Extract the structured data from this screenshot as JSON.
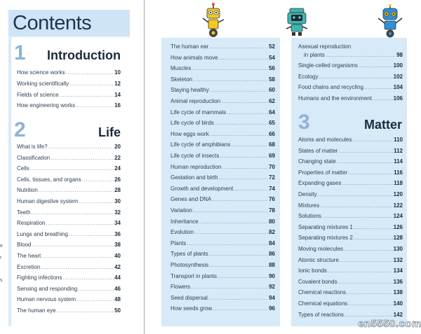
{
  "title": "Contents",
  "sections": [
    {
      "number": "1",
      "name": "Introduction"
    },
    {
      "number": "2",
      "name": "Life"
    },
    {
      "number": "3",
      "name": "Matter"
    }
  ],
  "intro_items": [
    {
      "label": "How science works",
      "page": "10"
    },
    {
      "label": "Working scientifically",
      "page": "12"
    },
    {
      "label": "Fields of science",
      "page": "14"
    },
    {
      "label": "How engineering works",
      "page": "16"
    }
  ],
  "life_items": [
    {
      "label": "What is life?",
      "page": "20"
    },
    {
      "label": "Classification",
      "page": "22"
    },
    {
      "label": "Cells",
      "page": "24"
    },
    {
      "label": "Cells, tissues, and organs",
      "page": "26"
    },
    {
      "label": "Nutrition",
      "page": "28"
    },
    {
      "label": "Human digestive system",
      "page": "30"
    },
    {
      "label": "Teeth",
      "page": "32"
    },
    {
      "label": "Respiration",
      "page": "34"
    },
    {
      "label": "Lungs and breathing",
      "page": "36"
    },
    {
      "label": "Blood",
      "page": "38"
    },
    {
      "label": "The heart",
      "page": "40"
    },
    {
      "label": "Excretion",
      "page": "42"
    },
    {
      "label": "Fighting infections",
      "page": "44"
    },
    {
      "label": "Sensing and responding",
      "page": "46"
    },
    {
      "label": "Human nervous system",
      "page": "48"
    },
    {
      "label": "The human eye",
      "page": "50"
    }
  ],
  "middle_items": [
    {
      "label": "The human ear",
      "page": "52"
    },
    {
      "label": "How animals move",
      "page": "54"
    },
    {
      "label": "Muscles",
      "page": "56"
    },
    {
      "label": "Skeleton",
      "page": "58"
    },
    {
      "label": "Staying healthy",
      "page": "60"
    },
    {
      "label": "Animal reproduction",
      "page": "62"
    },
    {
      "label": "Life cycle of mammals",
      "page": "64"
    },
    {
      "label": "Life cycle of birds",
      "page": "65"
    },
    {
      "label": "How eggs work",
      "page": "66"
    },
    {
      "label": "Life cycle of amphibians",
      "page": "68"
    },
    {
      "label": "Life cycle of insects",
      "page": "69"
    },
    {
      "label": "Human reproduction",
      "page": "70"
    },
    {
      "label": "Gestation and birth",
      "page": "72"
    },
    {
      "label": "Growth and development",
      "page": "74"
    },
    {
      "label": "Genes and DNA",
      "page": "76"
    },
    {
      "label": "Variation",
      "page": "78"
    },
    {
      "label": "Inheritance",
      "page": "80"
    },
    {
      "label": "Evolution",
      "page": "82"
    },
    {
      "label": "Plants",
      "page": "84"
    },
    {
      "label": "Types of plants",
      "page": "86"
    },
    {
      "label": "Photosynthesis",
      "page": "88"
    },
    {
      "label": "Transport in plants",
      "page": "90"
    },
    {
      "label": "Flowers",
      "page": "92"
    },
    {
      "label": "Seed dispersal",
      "page": "94"
    },
    {
      "label": "How seeds grow",
      "page": "96"
    }
  ],
  "right_top_items": [
    {
      "label": "Asexual reproduction",
      "label2": "in plants",
      "page": "98"
    },
    {
      "label": "Single-celled organisms",
      "page": "100"
    },
    {
      "label": "Ecology",
      "page": "102"
    },
    {
      "label": "Food chains and recycling",
      "page": "104"
    },
    {
      "label": "Humans and the environment",
      "page": "106"
    }
  ],
  "matter_items": [
    {
      "label": "Atoms and molecules",
      "page": "110"
    },
    {
      "label": "States of matter",
      "page": "112"
    },
    {
      "label": "Changing state",
      "page": "114"
    },
    {
      "label": "Properties of matter",
      "page": "116"
    },
    {
      "label": "Expanding gases",
      "page": "118"
    },
    {
      "label": "Density",
      "page": "120"
    },
    {
      "label": "Mixtures",
      "page": "122"
    },
    {
      "label": "Solutions",
      "page": "124"
    },
    {
      "label": "Separating mixtures 1",
      "page": "126"
    },
    {
      "label": "Separating mixtures 2",
      "page": "128"
    },
    {
      "label": "Moving molecules",
      "page": "130"
    },
    {
      "label": "Atomic structure",
      "page": "132"
    },
    {
      "label": "Ionic bonds",
      "page": "134"
    },
    {
      "label": "Covalent bonds",
      "page": "136"
    },
    {
      "label": "Chemical reactions",
      "page": "138"
    },
    {
      "label": "Chemical equations",
      "page": "140"
    },
    {
      "label": "Types of reactions",
      "page": "142"
    }
  ],
  "left_edge_marks": [
    "e",
    "r",
    "s"
  ],
  "watermark": "en5550.com",
  "colors": {
    "panel": "#d7eaf8",
    "section_number": "#8fb3d6",
    "robot_yellow": "#f3c81f",
    "robot_teal": "#3fb6b0",
    "robot_blue": "#2f8fd8"
  }
}
